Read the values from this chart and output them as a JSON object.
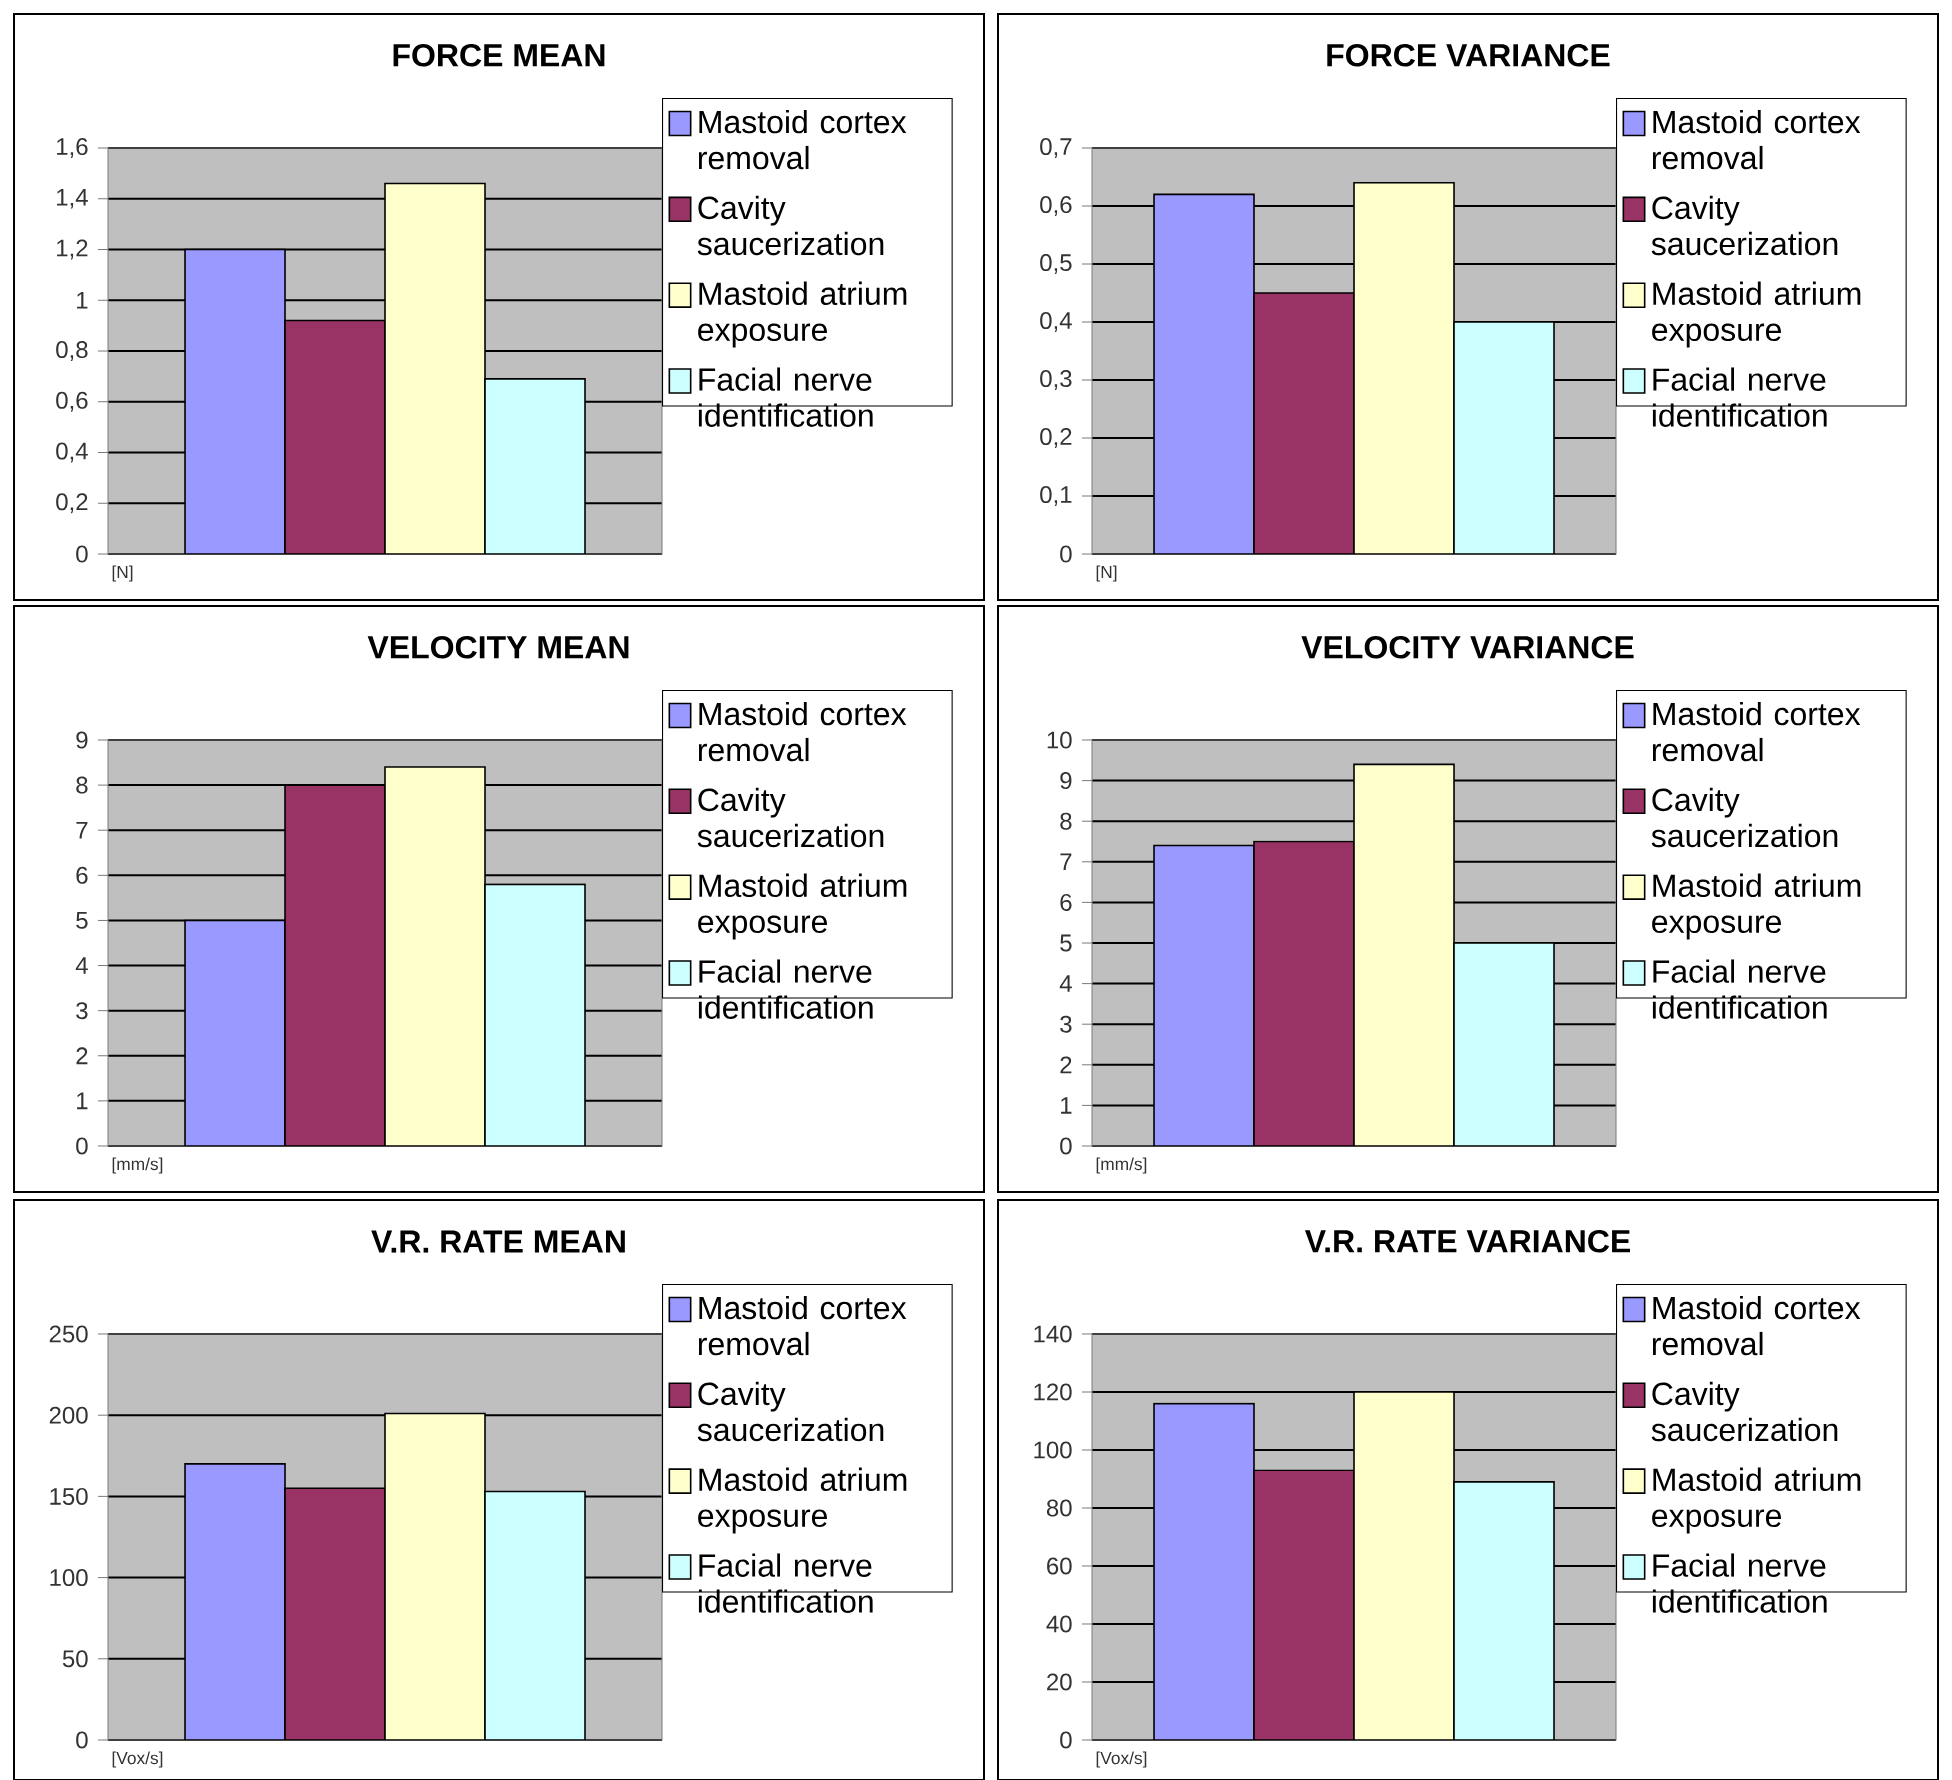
{
  "chart_data": [
    {
      "type": "bar",
      "title": "FORCE MEAN",
      "xlabel": "[N]",
      "categories": [
        null
      ],
      "grid": "y",
      "legend": "right",
      "ylim": [
        0,
        1.6
      ],
      "yticks": [
        0,
        {
          "value": 0.2,
          "label": "0,2"
        },
        {
          "value": 0.4,
          "label": "0,4"
        },
        {
          "value": 0.6,
          "label": "0,6"
        },
        {
          "value": 0.8,
          "label": "0,8"
        },
        1,
        {
          "value": 1.2,
          "label": "1,2"
        },
        {
          "value": 1.4,
          "label": "1,4"
        },
        {
          "value": 1.6,
          "label": "1,6"
        }
      ],
      "series": [
        {
          "name": "Mastoid cortex removal",
          "color": "#9999ff",
          "values": [
            1.2
          ]
        },
        {
          "name": "Cavity saucerization",
          "color": "#993366",
          "values": [
            0.92
          ]
        },
        {
          "name": "Mastoid atrium exposure",
          "color": "#ffffcc",
          "values": [
            1.46
          ]
        },
        {
          "name": "Facial nerve identification",
          "color": "#ccffff",
          "values": [
            0.69
          ]
        }
      ]
    },
    {
      "type": "bar",
      "title": "FORCE VARIANCE",
      "xlabel": "[N]",
      "categories": [
        null
      ],
      "grid": "y",
      "legend": "right",
      "ylim": [
        0,
        0.7
      ],
      "yticks": [
        0,
        {
          "value": 0.1,
          "label": "0,1"
        },
        {
          "value": 0.2,
          "label": "0,2"
        },
        {
          "value": 0.3,
          "label": "0,3"
        },
        {
          "value": 0.4,
          "label": "0,4"
        },
        {
          "value": 0.5,
          "label": "0,5"
        },
        {
          "value": 0.6,
          "label": "0,6"
        },
        {
          "value": 0.7,
          "label": "0,7"
        }
      ],
      "series": [
        {
          "name": "Mastoid cortex removal",
          "color": "#9999ff",
          "values": [
            0.62
          ]
        },
        {
          "name": "Cavity saucerization",
          "color": "#993366",
          "values": [
            0.45
          ]
        },
        {
          "name": "Mastoid atrium exposure",
          "color": "#ffffcc",
          "values": [
            0.64
          ]
        },
        {
          "name": "Facial nerve identification",
          "color": "#ccffff",
          "values": [
            0.4
          ]
        }
      ]
    },
    {
      "type": "bar",
      "title": "VELOCITY MEAN",
      "xlabel": "[mm/s]",
      "categories": [
        null
      ],
      "grid": "y",
      "legend": "right",
      "ylim": [
        0,
        9
      ],
      "yticks": [
        0,
        1,
        2,
        3,
        4,
        5,
        6,
        7,
        8,
        9
      ],
      "series": [
        {
          "name": "Mastoid cortex removal",
          "color": "#9999ff",
          "values": [
            5.0
          ]
        },
        {
          "name": "Cavity saucerization",
          "color": "#993366",
          "values": [
            8.0
          ]
        },
        {
          "name": "Mastoid atrium exposure",
          "color": "#ffffcc",
          "values": [
            8.4
          ]
        },
        {
          "name": "Facial nerve identification",
          "color": "#ccffff",
          "values": [
            5.8
          ]
        }
      ]
    },
    {
      "type": "bar",
      "title": "VELOCITY VARIANCE",
      "xlabel": "[mm/s]",
      "categories": [
        null
      ],
      "grid": "y",
      "legend": "right",
      "ylim": [
        0,
        10
      ],
      "yticks": [
        0,
        1,
        2,
        3,
        4,
        5,
        6,
        7,
        8,
        9,
        10
      ],
      "series": [
        {
          "name": "Mastoid cortex removal",
          "color": "#9999ff",
          "values": [
            7.4
          ]
        },
        {
          "name": "Cavity saucerization",
          "color": "#993366",
          "values": [
            7.5
          ]
        },
        {
          "name": "Mastoid atrium exposure",
          "color": "#ffffcc",
          "values": [
            9.4
          ]
        },
        {
          "name": "Facial nerve identification",
          "color": "#ccffff",
          "values": [
            5.0
          ]
        }
      ]
    },
    {
      "type": "bar",
      "title": "V.R. RATE MEAN",
      "xlabel": "[Vox/s]",
      "categories": [
        null
      ],
      "grid": "y",
      "legend": "right",
      "ylim": [
        0,
        250
      ],
      "yticks": [
        0,
        50,
        100,
        150,
        200,
        250
      ],
      "series": [
        {
          "name": "Mastoid cortex removal",
          "color": "#9999ff",
          "values": [
            170
          ]
        },
        {
          "name": "Cavity saucerization",
          "color": "#993366",
          "values": [
            155
          ]
        },
        {
          "name": "Mastoid atrium exposure",
          "color": "#ffffcc",
          "values": [
            201
          ]
        },
        {
          "name": "Facial nerve identification",
          "color": "#ccffff",
          "values": [
            153
          ]
        }
      ]
    },
    {
      "type": "bar",
      "title": "V.R. RATE VARIANCE",
      "xlabel": "[Vox/s]",
      "categories": [
        null
      ],
      "grid": "y",
      "legend": "right",
      "ylim": [
        0,
        140
      ],
      "yticks": [
        0,
        20,
        40,
        60,
        80,
        100,
        120,
        140
      ],
      "series": [
        {
          "name": "Mastoid cortex removal",
          "color": "#9999ff",
          "values": [
            116
          ]
        },
        {
          "name": "Cavity saucerization",
          "color": "#993366",
          "values": [
            93
          ]
        },
        {
          "name": "Mastoid atrium exposure",
          "color": "#ffffcc",
          "values": [
            120
          ]
        },
        {
          "name": "Facial nerve identification",
          "color": "#ccffff",
          "values": [
            89
          ]
        }
      ]
    }
  ]
}
